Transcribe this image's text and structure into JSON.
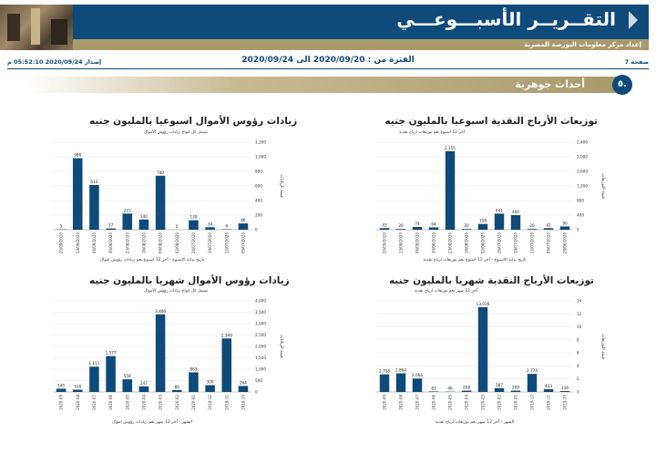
{
  "header": {
    "title": "التقــريــر الأسبـــوعـــي",
    "subtitle": "إعداد مركز معلومات البورصة المصرية"
  },
  "info": {
    "page": "صفحة 7",
    "period": "الفترة من : 2020/09/20 الى 2020/09/24",
    "issued": "إصدار 2020/09/24 05:52:10 م"
  },
  "section": {
    "number": "٥.",
    "title": "أحداث جوهرية"
  },
  "colors": {
    "bar": "#0e4a7a",
    "banner": "#0e4a7a",
    "gold": "#a99a6d"
  },
  "chart_data": [
    {
      "type": "bar",
      "title": "توزيعات الأرباح النقدية اسبوعيا بالمليون جنيه",
      "subtitle": "آخر 12 اسبوع بعم توزيعات ارباح نقدية",
      "xlabel": "تاريخ بداية الاسبوع - آخر 12 اسبوع بعم توزيعات ارباح نقدية",
      "ylabel": "قيمة التوزيعات",
      "ylim": [
        0,
        2400
      ],
      "yticks": [
        0,
        400,
        800,
        1200,
        1600,
        2000,
        2400
      ],
      "ytick_labels": [
        "0",
        "400",
        "800",
        "1,200",
        "1,600",
        "2,000",
        "2,400"
      ],
      "categories": [
        "20/09/2020",
        "13/09/2020",
        "06/09/2020",
        "30/08/2020",
        "23/08/2020",
        "16/08/2020",
        "02/08/2020",
        "26/07/2020",
        "19/07/2020",
        "12/07/2020",
        "05/07/2020",
        "28/06/2020"
      ],
      "values": [
        43,
        20,
        74,
        64,
        2155,
        20,
        158,
        441,
        400,
        20,
        42,
        90
      ],
      "data_labels": [
        "43",
        "20",
        "74",
        "64",
        "2,155",
        "20",
        "158",
        "441",
        "400",
        "20",
        "42",
        "90"
      ]
    },
    {
      "type": "bar",
      "title": "زيادات رؤوس الأموال اسبوعيا بالمليون جنيه",
      "subtitle": "تشمل كل انواع زيادات رؤوس الأموال",
      "xlabel": "تاريخ بداية الاسبوع - آخر 12 اسبوع بعم زيادات رؤوس اموال",
      "ylabel": "قيمة الزيادات",
      "ylim": [
        0,
        1200
      ],
      "yticks": [
        0,
        200,
        400,
        600,
        800,
        1000,
        1200
      ],
      "ytick_labels": [
        "0",
        "200",
        "400",
        "600",
        "800",
        "1,000",
        "1,200"
      ],
      "categories": [
        "20/09/2020",
        "13/09/2020",
        "06/09/2020",
        "30/08/2020",
        "23/08/2020",
        "16/08/2020",
        "09/08/2020",
        "02/08/2020",
        "26/07/2020",
        "19/07/2020",
        "12/07/2020",
        "05/07/2020"
      ],
      "values": [
        5,
        980,
        613,
        17,
        221,
        140,
        740,
        0,
        130,
        34,
        6,
        86
      ],
      "data_labels": [
        "5",
        "980",
        "613",
        "17",
        "221",
        "140",
        "740",
        "0",
        "130",
        "34",
        "6",
        "86"
      ]
    },
    {
      "type": "bar",
      "title": "توزيعات الأرباح النقدية شهريا بالمليون جنيه",
      "subtitle": "آخر 12 شهر بعم توزيعات ارباح نقدية",
      "xlabel": "الشهر - آخر 12 شهر بعم توزيعات ارباح نقدية",
      "ylabel": "قيمة التوزيعات",
      "ylim": [
        0,
        14000
      ],
      "yticks": [
        0,
        2000,
        4000,
        6000,
        8000,
        10000,
        12000,
        14000
      ],
      "ytick_labels": [
        "0",
        "2",
        "4",
        "6",
        "8",
        "10",
        "12",
        "14"
      ],
      "categories": [
        "2020-09",
        "2020-08",
        "2020-07",
        "2020-06",
        "2020-05",
        "2020-04",
        "2020-03",
        "2020-02",
        "2020-01",
        "2019-12",
        "2019-11",
        "2019-10"
      ],
      "values": [
        2708,
        2864,
        2066,
        83,
        46,
        208,
        13016,
        587,
        209,
        2774,
        433,
        139
      ],
      "data_labels": [
        "2,708",
        "2,864",
        "2,066",
        "83",
        "46",
        "208",
        "13,016",
        "587",
        "209",
        "2,774",
        "433",
        "139"
      ]
    },
    {
      "type": "bar",
      "title": "زيادات رؤوس الأموال شهريا بالمليون جنيه",
      "subtitle": "تشمل كل انواع زيادات رؤوس الأموال",
      "xlabel": "الشهر - آخر 12 شهر بعم زيادات رؤوس اموال",
      "ylabel": "قيمة الزيادات",
      "ylim": [
        0,
        4000
      ],
      "yticks": [
        0,
        500,
        1000,
        1500,
        2000,
        2500,
        3000,
        3500,
        4000
      ],
      "ytick_labels": [
        "0",
        "500",
        "1,000",
        "1,500",
        "2,000",
        "2,500",
        "3,000",
        "3,500",
        "4,000"
      ],
      "categories": [
        "2020-09",
        "2020-08",
        "2020-07",
        "2020-06",
        "2020-05",
        "2020-04",
        "2020-03",
        "2020-02",
        "2020-01",
        "2019-12",
        "2019-11",
        "2019-10"
      ],
      "values": [
        145,
        100,
        1111,
        1577,
        556,
        247,
        3406,
        86,
        863,
        300,
        2349,
        264
      ],
      "data_labels": [
        "145",
        "100",
        "1,111",
        "1,577",
        "556",
        "247",
        "3,406",
        "86",
        "863",
        "300",
        "2,349",
        "264"
      ]
    }
  ]
}
